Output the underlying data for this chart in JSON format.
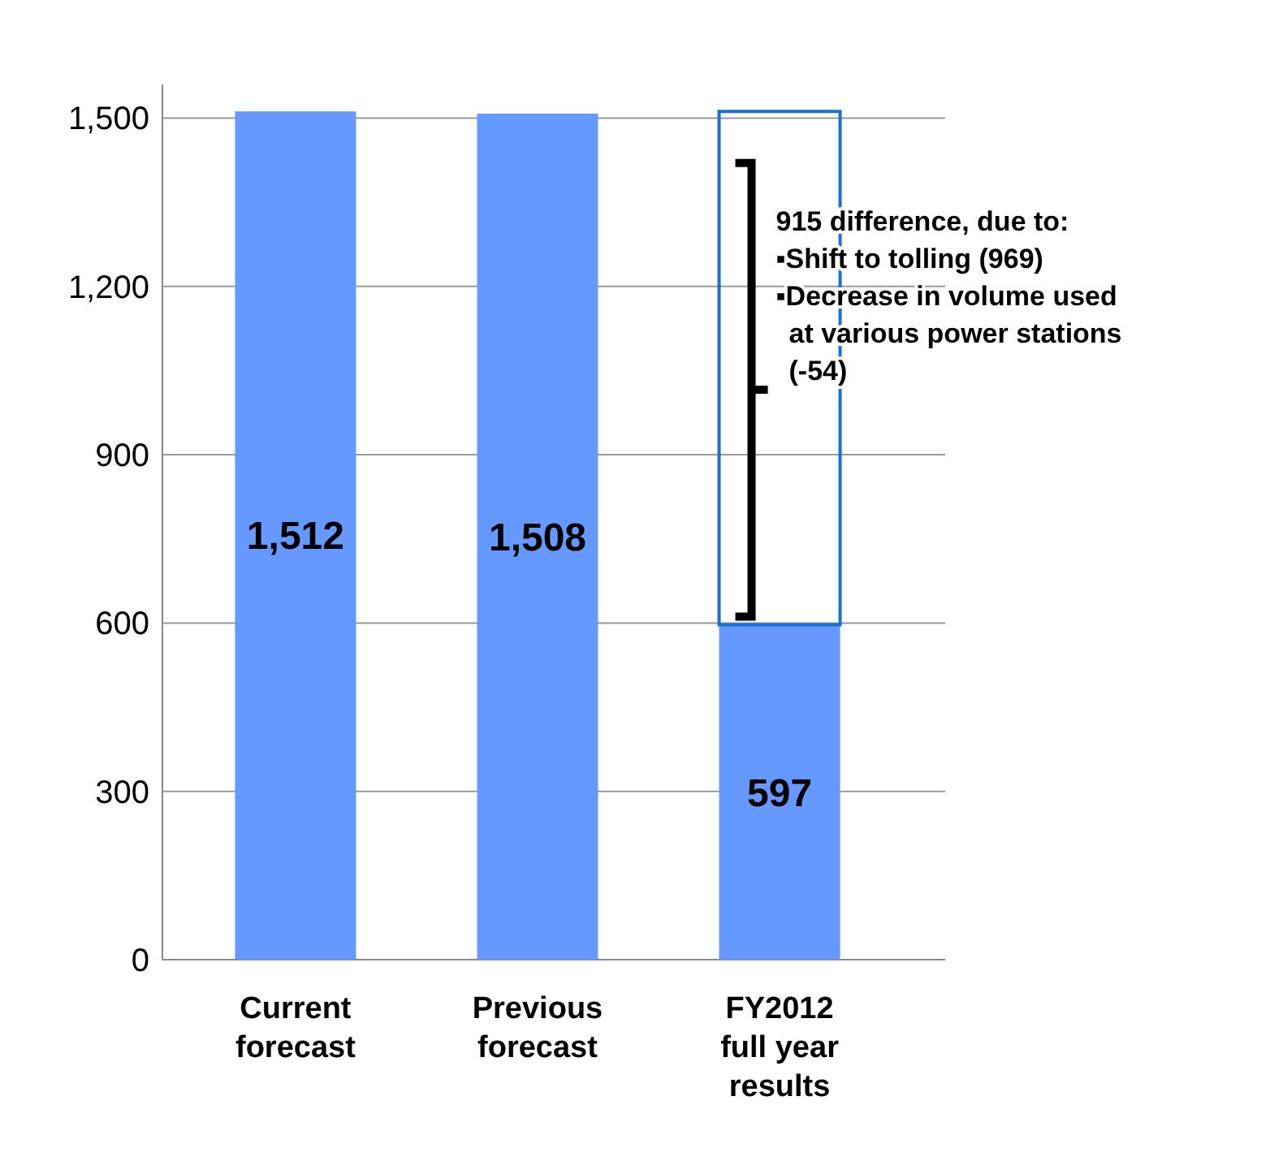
{
  "chart_data": {
    "type": "bar",
    "categories": [
      "Current forecast",
      "Previous forecast",
      "FY2012 full year results"
    ],
    "values": [
      1512,
      1508,
      597
    ],
    "color": "#6699ff",
    "value_labels": [
      "1,512",
      "1,508",
      "597"
    ],
    "ylim": [
      0,
      1560
    ],
    "yticks": [
      0,
      300,
      600,
      900,
      {
        "value": 1200,
        "label": "1,200"
      },
      {
        "value": 1500,
        "label": "1,500"
      }
    ],
    "grid": "y",
    "data_labels": true,
    "annotations": [
      "915 difference, due to:",
      "▪Shift to tolling (969)",
      "▪Decrease in volume used at various power stations (-54)"
    ]
  }
}
